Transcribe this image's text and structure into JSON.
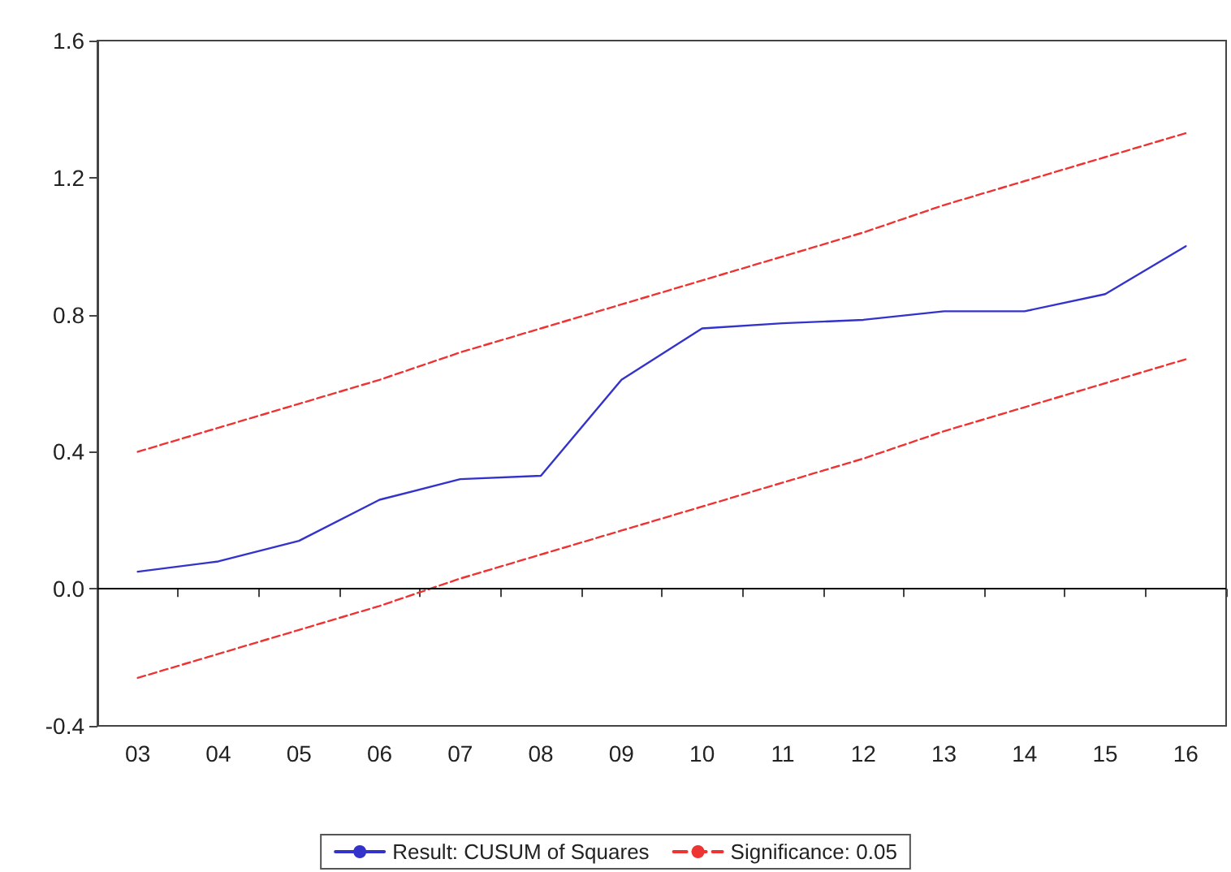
{
  "chart_data": {
    "type": "line",
    "categories": [
      "03",
      "04",
      "05",
      "06",
      "07",
      "08",
      "09",
      "10",
      "11",
      "12",
      "13",
      "14",
      "15",
      "16"
    ],
    "ylim": [
      -0.4,
      1.6
    ],
    "yticks": [
      -0.4,
      {
        "value": 0,
        "label": "0.0"
      },
      0.4,
      0.8,
      1.2,
      1.6
    ],
    "grid": false,
    "legend": "bottom",
    "marker": "none",
    "ref_lines": [
      {
        "axis": "y",
        "value": 0,
        "color": "#000000",
        "line_style": "solid"
      }
    ],
    "series": [
      {
        "name": "Result: CUSUM of Squares",
        "color": "#3333cc",
        "line_style": "solid",
        "values": [
          0.05,
          0.08,
          0.14,
          0.26,
          0.32,
          0.33,
          0.61,
          0.76,
          0.775,
          0.785,
          0.81,
          0.81,
          0.86,
          1.0
        ]
      },
      {
        "name": "Significance: 0.05",
        "color": "#ee3333",
        "line_style": "dashed",
        "values": [
          0.4,
          0.47,
          0.54,
          0.61,
          0.69,
          0.76,
          0.83,
          0.9,
          0.97,
          1.04,
          1.12,
          1.19,
          1.26,
          1.33
        ]
      },
      {
        "color": "#ee3333",
        "line_style": "dashed",
        "values": [
          -0.26,
          -0.19,
          -0.12,
          -0.05,
          0.03,
          0.1,
          0.17,
          0.24,
          0.31,
          0.38,
          0.46,
          0.53,
          0.6,
          0.67
        ]
      }
    ]
  }
}
